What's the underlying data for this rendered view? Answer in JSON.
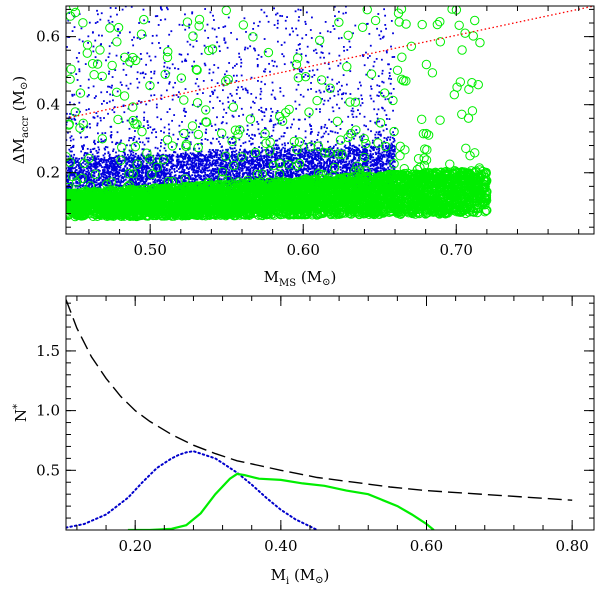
{
  "chart_data": [
    {
      "type": "scatter",
      "xlabel": "M",
      "xlabel_sub": "MS",
      "xlabel_unit": "(M",
      "xlabel_unit_end": ")",
      "ylabel": "ΔM",
      "ylabel_sub": "accr",
      "ylabel_unit": "(M",
      "ylabel_unit_end": ")",
      "xlim": [
        0.445,
        0.79
      ],
      "ylim": [
        0.02,
        0.69
      ],
      "xticks": [
        0.5,
        0.6,
        0.7
      ],
      "xtick_labels": [
        "0.50",
        "0.60",
        "0.70"
      ],
      "yticks": [
        0.2,
        0.4,
        0.6
      ],
      "ytick_labels": [
        "0.2",
        "0.4",
        "0.6"
      ],
      "series": [
        {
          "marker": "dot",
          "color": "#0000dd",
          "x_range": [
            0.445,
            0.66
          ],
          "y_core_lower": [
            [
              0.445,
              0.13
            ],
            [
              0.66,
              0.16
            ]
          ],
          "y_core_upper": [
            [
              0.445,
              0.24
            ],
            [
              0.66,
              0.28
            ]
          ],
          "y_scatter_max": 0.69
        },
        {
          "marker": "open-circle",
          "color": "#00ee00",
          "x_range": [
            0.445,
            0.72
          ],
          "y_core_lower": [
            [
              0.445,
              0.07
            ],
            [
              0.72,
              0.08
            ]
          ],
          "y_core_upper": [
            [
              0.445,
              0.14
            ],
            [
              0.72,
              0.21
            ]
          ],
          "y_scatter_max": 0.69
        }
      ],
      "reference_line": {
        "style": "dotted",
        "color": "#ff0000",
        "points": [
          [
            0.445,
            0.36
          ],
          [
            0.79,
            0.69
          ]
        ]
      }
    },
    {
      "type": "line",
      "xlabel": "M",
      "xlabel_sub": "i",
      "xlabel_unit": "(M",
      "xlabel_unit_end": ")",
      "ylabel": "N",
      "ylabel_sup": "*",
      "xlim": [
        0.105,
        0.83
      ],
      "ylim": [
        0.0,
        1.96
      ],
      "xticks": [
        0.2,
        0.4,
        0.6,
        0.8
      ],
      "xtick_labels": [
        "0.20",
        "0.40",
        "0.60",
        "0.80"
      ],
      "yticks": [
        0.5,
        1.0,
        1.5
      ],
      "ytick_labels": [
        "0.5",
        "1.0",
        "1.5"
      ],
      "series": [
        {
          "style": "dashed",
          "color": "#000000",
          "x": [
            0.105,
            0.12,
            0.14,
            0.16,
            0.18,
            0.2,
            0.22,
            0.25,
            0.28,
            0.31,
            0.34,
            0.37,
            0.4,
            0.45,
            0.5,
            0.55,
            0.6,
            0.65,
            0.7,
            0.75,
            0.8
          ],
          "y": [
            1.93,
            1.69,
            1.45,
            1.27,
            1.12,
            1.0,
            0.91,
            0.8,
            0.71,
            0.64,
            0.58,
            0.54,
            0.5,
            0.44,
            0.4,
            0.36,
            0.33,
            0.31,
            0.29,
            0.27,
            0.25
          ]
        },
        {
          "style": "dotted",
          "color": "#0000cc",
          "x": [
            0.105,
            0.13,
            0.16,
            0.19,
            0.21,
            0.23,
            0.25,
            0.26,
            0.27,
            0.28,
            0.29,
            0.3,
            0.31,
            0.32,
            0.34,
            0.36,
            0.38,
            0.4,
            0.42,
            0.44,
            0.45
          ],
          "y": [
            0.02,
            0.05,
            0.13,
            0.27,
            0.4,
            0.52,
            0.6,
            0.63,
            0.65,
            0.66,
            0.64,
            0.62,
            0.6,
            0.56,
            0.48,
            0.38,
            0.27,
            0.17,
            0.09,
            0.03,
            0.0
          ]
        },
        {
          "style": "solid",
          "color": "#00ee00",
          "x": [
            0.19,
            0.22,
            0.25,
            0.27,
            0.29,
            0.31,
            0.33,
            0.34,
            0.35,
            0.37,
            0.4,
            0.43,
            0.46,
            0.49,
            0.52,
            0.54,
            0.56,
            0.58,
            0.6,
            0.61
          ],
          "y": [
            0.0,
            0.0,
            0.01,
            0.04,
            0.14,
            0.3,
            0.43,
            0.47,
            0.46,
            0.43,
            0.42,
            0.39,
            0.37,
            0.33,
            0.3,
            0.25,
            0.2,
            0.13,
            0.05,
            0.0
          ]
        }
      ]
    }
  ]
}
